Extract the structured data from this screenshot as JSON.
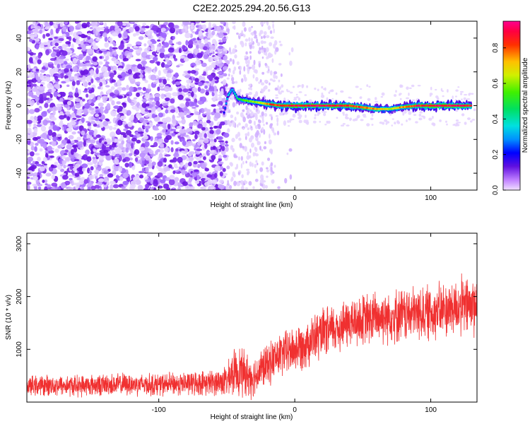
{
  "title": "C2E2.2025.294.20.56.G13",
  "colors": {
    "snr_line": "#f03030",
    "spectro_bg_dots": "#8a3cf0",
    "ridge_high": "#ff2020"
  },
  "chart_data": [
    {
      "type": "heatmap",
      "xlabel": "Height of straight line (km)",
      "ylabel": "Frequency (Hz)",
      "xlim": [
        -197,
        134
      ],
      "ylim": [
        -50,
        50
      ],
      "xticks": [
        {
          "value": -100,
          "label": "-100"
        },
        {
          "value": 0,
          "label": "0"
        },
        {
          "value": 100,
          "label": "100"
        }
      ],
      "yticks": [
        {
          "value": -40,
          "label": "-40"
        },
        {
          "value": -20,
          "label": "-20"
        },
        {
          "value": 0,
          "label": "0"
        },
        {
          "value": 20,
          "label": "20"
        },
        {
          "value": 40,
          "label": "40"
        }
      ],
      "colorbar": {
        "label": "Normalized spectral amplitude",
        "range": [
          0,
          0.95
        ],
        "ticks": [
          {
            "value": 0.0,
            "label": "0.0"
          },
          {
            "value": 0.2,
            "label": "0.2"
          },
          {
            "value": 0.4,
            "label": "0.4"
          },
          {
            "value": 0.6,
            "label": "0.6"
          },
          {
            "value": 0.8,
            "label": "0.8"
          }
        ]
      },
      "ridge": {
        "description_note": "",
        "points": [
          {
            "x": -52,
            "y": -4,
            "a": 0.2
          },
          {
            "x": -49,
            "y": 6,
            "a": 0.35
          },
          {
            "x": -46,
            "y": 10,
            "a": 0.3
          },
          {
            "x": -42,
            "y": 4,
            "a": 0.45
          },
          {
            "x": -36,
            "y": 3,
            "a": 0.55
          },
          {
            "x": -28,
            "y": 2,
            "a": 0.6
          },
          {
            "x": -20,
            "y": 1,
            "a": 0.75
          },
          {
            "x": -10,
            "y": 0,
            "a": 0.85
          },
          {
            "x": 0,
            "y": 0,
            "a": 0.9
          },
          {
            "x": 10,
            "y": 0,
            "a": 0.9
          },
          {
            "x": 20,
            "y": 0,
            "a": 0.9
          },
          {
            "x": 30,
            "y": 0,
            "a": 0.85
          },
          {
            "x": 40,
            "y": 0,
            "a": 0.85
          },
          {
            "x": 50,
            "y": -1,
            "a": 0.8
          },
          {
            "x": 60,
            "y": -2,
            "a": 0.7
          },
          {
            "x": 70,
            "y": -2,
            "a": 0.65
          },
          {
            "x": 78,
            "y": -1,
            "a": 0.75
          },
          {
            "x": 90,
            "y": 0,
            "a": 0.85
          },
          {
            "x": 100,
            "y": 0,
            "a": 0.9
          },
          {
            "x": 110,
            "y": 0,
            "a": 0.9
          },
          {
            "x": 120,
            "y": 0,
            "a": 0.9
          },
          {
            "x": 130,
            "y": 0,
            "a": 0.85
          }
        ]
      }
    },
    {
      "type": "line",
      "xlabel": "Height of straight line (km)",
      "ylabel": "SNR (10 * v/v)",
      "xlim": [
        -197,
        134
      ],
      "ylim": [
        0,
        3200
      ],
      "xticks": [
        {
          "value": -100,
          "label": "-100"
        },
        {
          "value": 0,
          "label": "0"
        },
        {
          "value": 100,
          "label": "100"
        }
      ],
      "yticks": [
        {
          "value": 1000,
          "label": "1000"
        },
        {
          "value": 2000,
          "label": "2000"
        },
        {
          "value": 3000,
          "label": "3000"
        }
      ],
      "series": [
        {
          "x": [
            -197,
            -180,
            -160,
            -140,
            -120,
            -100,
            -80,
            -60,
            -50,
            -45,
            -40,
            -35,
            -30,
            -25,
            -20,
            -15,
            -10,
            -5,
            0,
            10,
            20,
            30,
            40,
            50,
            60,
            70,
            80,
            90,
            100,
            110,
            120,
            134
          ],
          "values": [
            300,
            320,
            310,
            330,
            340,
            330,
            350,
            370,
            400,
            560,
            600,
            500,
            480,
            620,
            700,
            820,
            900,
            960,
            1000,
            1150,
            1280,
            1400,
            1500,
            1550,
            1600,
            1650,
            1650,
            1680,
            1700,
            1750,
            1800,
            1850
          ],
          "spread": [
            220,
            230,
            240,
            240,
            250,
            250,
            260,
            280,
            350,
            500,
            550,
            500,
            450,
            450,
            450,
            480,
            500,
            500,
            520,
            550,
            550,
            560,
            560,
            580,
            600,
            600,
            600,
            600,
            620,
            620,
            650,
            700
          ]
        }
      ]
    }
  ]
}
